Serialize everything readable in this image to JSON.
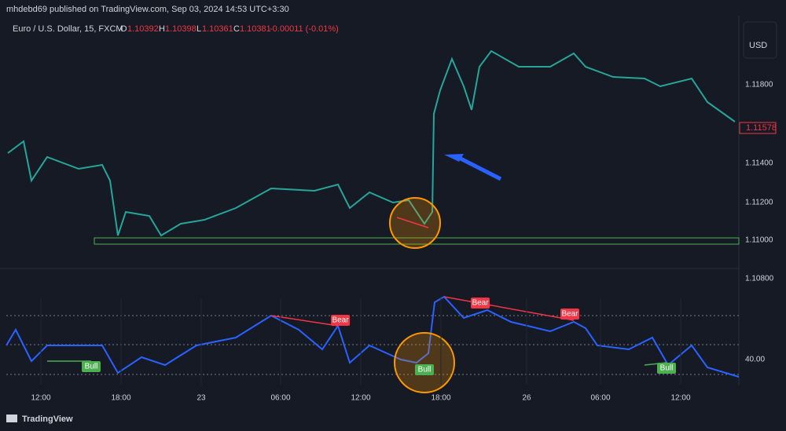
{
  "header": {
    "publisher": "mhdebd69 published on TradingView.com, Sep 03, 2024 14:53 UTC+3:30"
  },
  "legend": {
    "symbol": "Euro / U.S. Dollar, 15, FXCM",
    "open_label": "O",
    "open": "1.10392",
    "high_label": "H",
    "high": "1.10398",
    "low_label": "L",
    "low": "1.10361",
    "close_label": "C",
    "close": "1.10381",
    "change": "-0.00011 (-0.01%)"
  },
  "currency": "USD",
  "price_axis": [
    "1.11800",
    "1.11400",
    "1.11200",
    "1.11000",
    "1.10800"
  ],
  "last_price": "1.11578",
  "time_axis": [
    "12:00",
    "18:00",
    "23",
    "06:00",
    "12:00",
    "18:00",
    "26",
    "06:00",
    "12:00"
  ],
  "indicator": {
    "level": "40.00",
    "labels": [
      "Bear",
      "Bear",
      "Bear",
      "Bull",
      "Bull",
      "Bull"
    ]
  },
  "footer": {
    "brand": "TradingView"
  }
}
